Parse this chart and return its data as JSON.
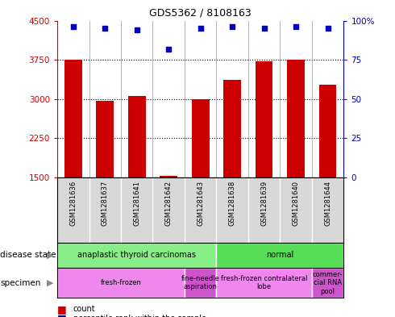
{
  "title": "GDS5362 / 8108163",
  "samples": [
    "GSM1281636",
    "GSM1281637",
    "GSM1281641",
    "GSM1281642",
    "GSM1281643",
    "GSM1281638",
    "GSM1281639",
    "GSM1281640",
    "GSM1281644"
  ],
  "counts": [
    3750,
    2960,
    3060,
    1530,
    2990,
    3370,
    3720,
    3750,
    3280
  ],
  "percentiles": [
    96,
    95,
    94,
    82,
    95,
    96,
    95,
    96,
    95
  ],
  "ylim_left": [
    1500,
    4500
  ],
  "ylim_right": [
    0,
    100
  ],
  "yticks_left": [
    1500,
    2250,
    3000,
    3750,
    4500
  ],
  "yticks_right": [
    0,
    25,
    50,
    75,
    100
  ],
  "bar_color": "#cc0000",
  "dot_color": "#0000bb",
  "background_sample": "#d8d8d8",
  "ds_colors": [
    "#88ee88",
    "#55dd55"
  ],
  "ds_labels": [
    "anaplastic thyroid carcinomas",
    "normal"
  ],
  "ds_ranges": [
    [
      0,
      5
    ],
    [
      5,
      9
    ]
  ],
  "sp_colors": [
    "#ee88ee",
    "#cc55cc",
    "#ee88ee",
    "#cc55cc"
  ],
  "sp_labels": [
    "fresh-frozen",
    "fine-needle\naspiration",
    "fresh-frozen contralateral\nlobe",
    "commer-\ncial RNA\npool"
  ],
  "sp_ranges": [
    [
      0,
      4
    ],
    [
      4,
      5
    ],
    [
      5,
      8
    ],
    [
      8,
      9
    ]
  ],
  "left_label_color": "#cc0000",
  "right_label_color": "#0000bb",
  "bar_width": 0.55
}
